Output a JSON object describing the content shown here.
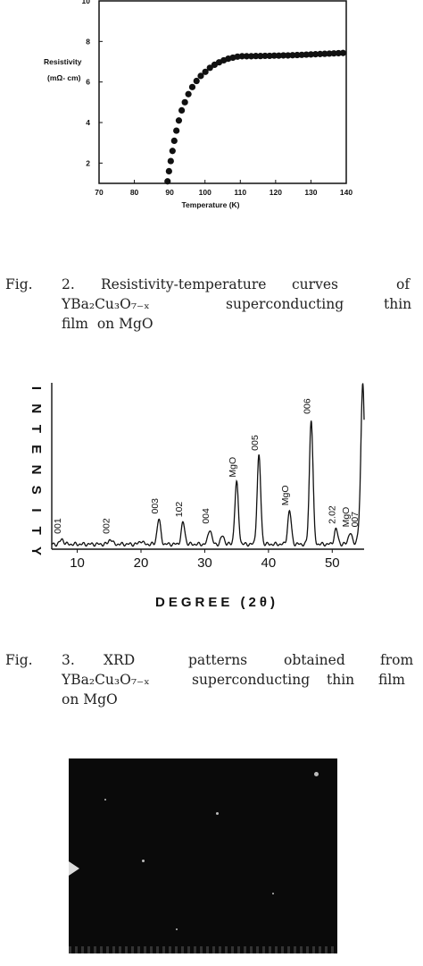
{
  "figure2": {
    "chart_data": {
      "type": "scatter",
      "xlabel": "Temperature (K)",
      "ylabel_line1": "Resistivity",
      "ylabel_line2": "(mΩ- cm)",
      "xlim": [
        70,
        140
      ],
      "ylim": [
        1,
        10
      ],
      "xticks": [
        "70",
        "80",
        "90",
        "100",
        "110",
        "120",
        "130",
        "140"
      ],
      "xtick_values": [
        70,
        80,
        90,
        100,
        110,
        120,
        130,
        140
      ],
      "yticks": [
        "2",
        "4",
        "6",
        "8",
        "10"
      ],
      "ytick_values": [
        2,
        4,
        6,
        8,
        10
      ],
      "marker_color": "#111111",
      "points": [
        [
          89.4,
          1.1
        ],
        [
          89.8,
          1.6
        ],
        [
          90.3,
          2.1
        ],
        [
          90.8,
          2.6
        ],
        [
          91.3,
          3.1
        ],
        [
          91.9,
          3.6
        ],
        [
          92.6,
          4.1
        ],
        [
          93.4,
          4.6
        ],
        [
          94.3,
          5.0
        ],
        [
          95.3,
          5.4
        ],
        [
          96.4,
          5.75
        ],
        [
          97.6,
          6.05
        ],
        [
          98.8,
          6.3
        ],
        [
          100.1,
          6.5
        ],
        [
          101.4,
          6.7
        ],
        [
          102.7,
          6.85
        ],
        [
          104.0,
          6.97
        ],
        [
          105.3,
          7.07
        ],
        [
          106.6,
          7.15
        ],
        [
          107.9,
          7.2
        ],
        [
          109.2,
          7.25
        ],
        [
          110.5,
          7.27
        ],
        [
          111.8,
          7.27
        ],
        [
          113.1,
          7.27
        ],
        [
          114.4,
          7.28
        ],
        [
          115.7,
          7.28
        ],
        [
          117.0,
          7.29
        ],
        [
          118.3,
          7.29
        ],
        [
          119.6,
          7.3
        ],
        [
          120.9,
          7.3
        ],
        [
          122.2,
          7.31
        ],
        [
          123.5,
          7.31
        ],
        [
          124.8,
          7.32
        ],
        [
          126.1,
          7.33
        ],
        [
          127.4,
          7.34
        ],
        [
          128.7,
          7.35
        ],
        [
          130.0,
          7.36
        ],
        [
          131.3,
          7.37
        ],
        [
          132.6,
          7.38
        ],
        [
          133.9,
          7.39
        ],
        [
          135.2,
          7.4
        ],
        [
          136.5,
          7.41
        ],
        [
          137.8,
          7.42
        ],
        [
          139.1,
          7.43
        ]
      ]
    },
    "caption": {
      "label": "Fig.",
      "number": "2.",
      "line1_words": [
        "Resistivity-temperature",
        "curves",
        "of"
      ],
      "line2_words": [
        "YBa₂Cu₃O₇₋ₓ",
        "superconducting",
        "thin"
      ],
      "line3": "film  on MgO"
    }
  },
  "figure3": {
    "chart_data": {
      "type": "line",
      "xlabel": "DEGREE (2θ)",
      "ylabel": "INTENSITY",
      "xlim": [
        6,
        55
      ],
      "ylim": [
        0,
        100
      ],
      "xticks": [
        "10",
        "20",
        "30",
        "40",
        "50"
      ],
      "xtick_values": [
        10,
        20,
        30,
        40,
        50
      ],
      "baseline": 3,
      "line_color": "#111111",
      "peaks": [
        {
          "x": 7.6,
          "height": 6,
          "label": "001"
        },
        {
          "x": 15.2,
          "height": 6,
          "label": "002"
        },
        {
          "x": 20.0,
          "height": 5,
          "label": ""
        },
        {
          "x": 22.8,
          "height": 18,
          "label": "003"
        },
        {
          "x": 26.6,
          "height": 16,
          "label": "102"
        },
        {
          "x": 30.8,
          "height": 12,
          "label": "004"
        },
        {
          "x": 32.8,
          "height": 8,
          "label": ""
        },
        {
          "x": 35.0,
          "height": 40,
          "label": "MgO"
        },
        {
          "x": 38.5,
          "height": 56,
          "label": "005"
        },
        {
          "x": 43.3,
          "height": 23,
          "label": "MgO"
        },
        {
          "x": 46.7,
          "height": 78,
          "label": "006"
        },
        {
          "x": 50.6,
          "height": 12,
          "label": "2.02"
        },
        {
          "x": 52.8,
          "height": 10,
          "label": "MgO"
        },
        {
          "x": 54.2,
          "height": 10,
          "label": "007"
        },
        {
          "x": 54.8,
          "height": 100,
          "label": ""
        }
      ]
    },
    "caption": {
      "label": "Fig.",
      "number": "3.",
      "line1_words": [
        "XRD",
        "patterns",
        "obtained",
        "from"
      ],
      "line2_words": [
        "YBa₂Cu₃O₇₋ₓ",
        "superconducting",
        "thin",
        "film"
      ],
      "line3": "on MgO"
    }
  }
}
